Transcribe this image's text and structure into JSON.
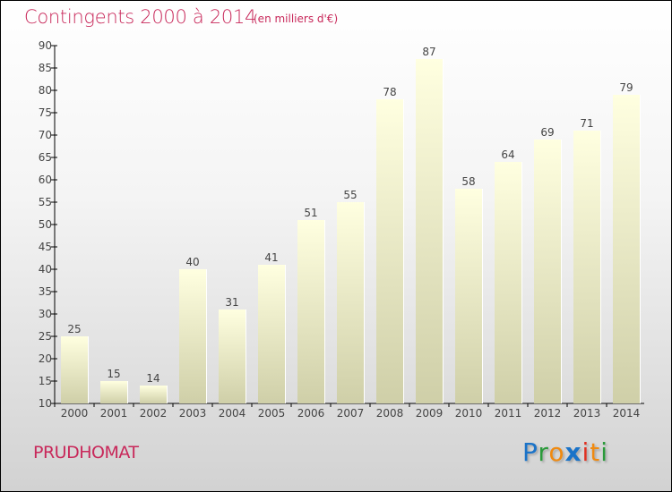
{
  "chart_data": {
    "type": "bar",
    "title": "Contingents 2000 à 2014",
    "subtitle": "(en milliers d'€)",
    "xlabel": "",
    "ylabel": "",
    "categories": [
      "2000",
      "2001",
      "2002",
      "2003",
      "2004",
      "2005",
      "2006",
      "2007",
      "2008",
      "2009",
      "2010",
      "2011",
      "2012",
      "2013",
      "2014"
    ],
    "values": [
      25,
      15,
      14,
      40,
      31,
      41,
      51,
      55,
      78,
      87,
      58,
      64,
      69,
      71,
      79
    ],
    "ylim": [
      10,
      90
    ],
    "yticks": [
      10,
      15,
      20,
      25,
      30,
      35,
      40,
      45,
      50,
      55,
      60,
      65,
      70,
      75,
      80,
      85,
      90
    ],
    "grid": false,
    "legend": "none"
  },
  "footer": {
    "place": "PRUDHOMAT",
    "logo": [
      {
        "ch": "P",
        "color": "#1a73c8"
      },
      {
        "ch": "r",
        "color": "#2a9a3a"
      },
      {
        "ch": "o",
        "color": "#f08a10"
      },
      {
        "ch": "x",
        "color": "#1a73c8"
      },
      {
        "ch": "i",
        "color": "#e03020"
      },
      {
        "ch": "t",
        "color": "#f08a10"
      },
      {
        "ch": "i",
        "color": "#2a9a3a"
      }
    ]
  }
}
